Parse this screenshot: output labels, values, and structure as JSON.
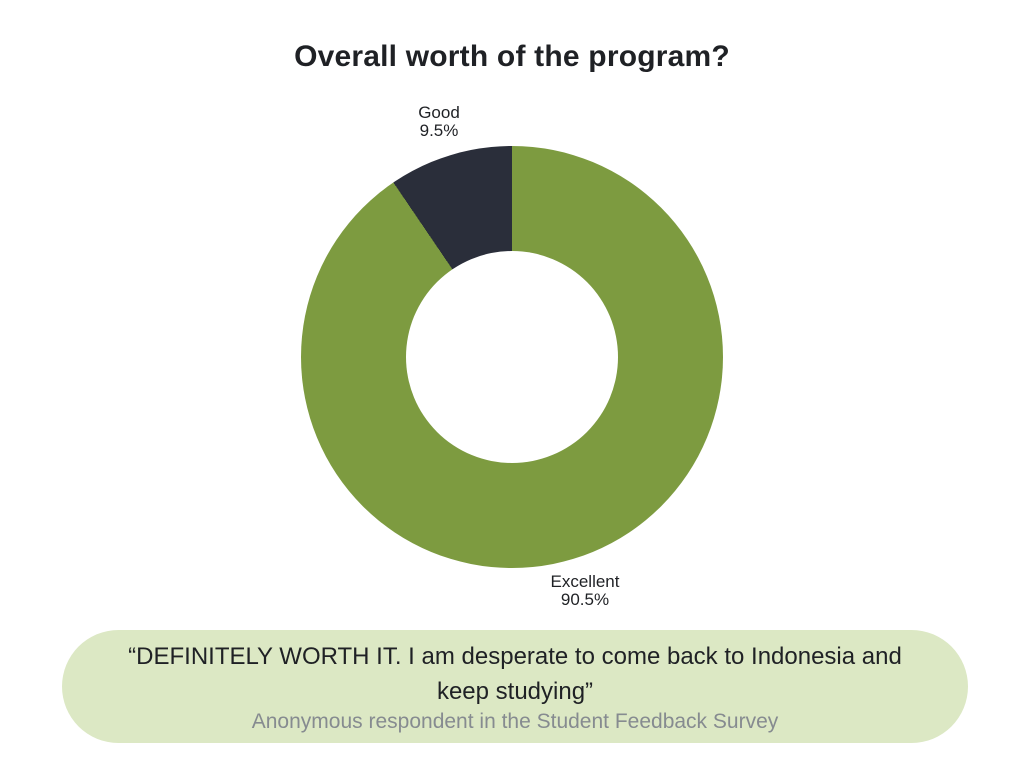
{
  "page": {
    "background": "#ffffff"
  },
  "chart_data": {
    "type": "pie",
    "donut": true,
    "title": "Overall worth of the program?",
    "categories": [
      "Excellent",
      "Good"
    ],
    "values": [
      90.5,
      9.5
    ],
    "colors": [
      "#7d9b40",
      "#2a2e3a"
    ],
    "start_angle_deg": 0,
    "direction": "clockwise",
    "inner_radius_ratio": 0.5,
    "legend": "none",
    "slices": [
      {
        "name": "Excellent",
        "value": 90.5,
        "pct_label": "90.5%",
        "color": "#7d9b40"
      },
      {
        "name": "Good",
        "value": 9.5,
        "pct_label": "9.5%",
        "color": "#2a2e3a"
      }
    ],
    "hole_color": "#ffffff"
  },
  "quote": {
    "lines": [
      "“DEFINITELY WORTH IT. I am desperate to come back to Indonesia and",
      "keep studying”"
    ],
    "attribution": "Anonymous respondent in the Student Feedback Survey",
    "bg_color": "#dce8c4",
    "text_color": "#1f2125",
    "attribution_color": "#868b90"
  }
}
